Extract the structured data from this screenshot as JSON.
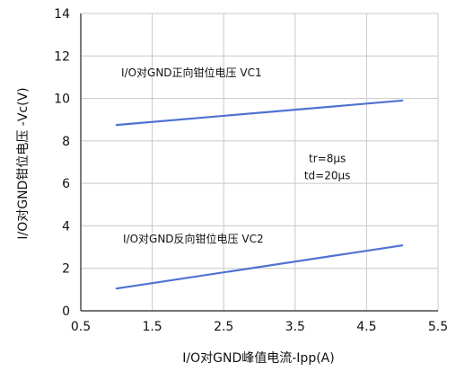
{
  "chart_data": {
    "type": "line",
    "xlabel": "I/O对GND峰值电流-Ipp(A)",
    "ylabel": "I/O对GND钳位电压 -Vc(V)",
    "xlim": [
      0.5,
      5.5
    ],
    "ylim": [
      0,
      14
    ],
    "xticks": [
      0.5,
      1.5,
      2.5,
      3.5,
      4.5,
      5.5
    ],
    "xtick_labels": [
      "0.5",
      "1.5",
      "2.5",
      "3.5",
      "4.5",
      "5.5"
    ],
    "yticks": [
      0,
      2,
      4,
      6,
      8,
      10,
      12,
      14
    ],
    "ytick_labels": [
      "0",
      "2",
      "4",
      "6",
      "8",
      "10",
      "12",
      "14"
    ],
    "grid": true,
    "series": [
      {
        "name": "I/O对GND正向钳位电压 VC1",
        "color": "#4f72d2",
        "points": [
          {
            "x": 1.0,
            "y": 8.75
          },
          {
            "x": 5.0,
            "y": 9.9
          }
        ]
      },
      {
        "name": "I/O对GND反向钳位电压 VC2",
        "color": "#4f72d2",
        "points": [
          {
            "x": 1.0,
            "y": 1.05
          },
          {
            "x": 5.0,
            "y": 3.08
          }
        ]
      }
    ],
    "annotations": [
      {
        "text": "tr=8μs",
        "x": 3.95,
        "y": 7.0
      },
      {
        "text": "td=20μs",
        "x": 3.95,
        "y": 6.2
      }
    ]
  }
}
